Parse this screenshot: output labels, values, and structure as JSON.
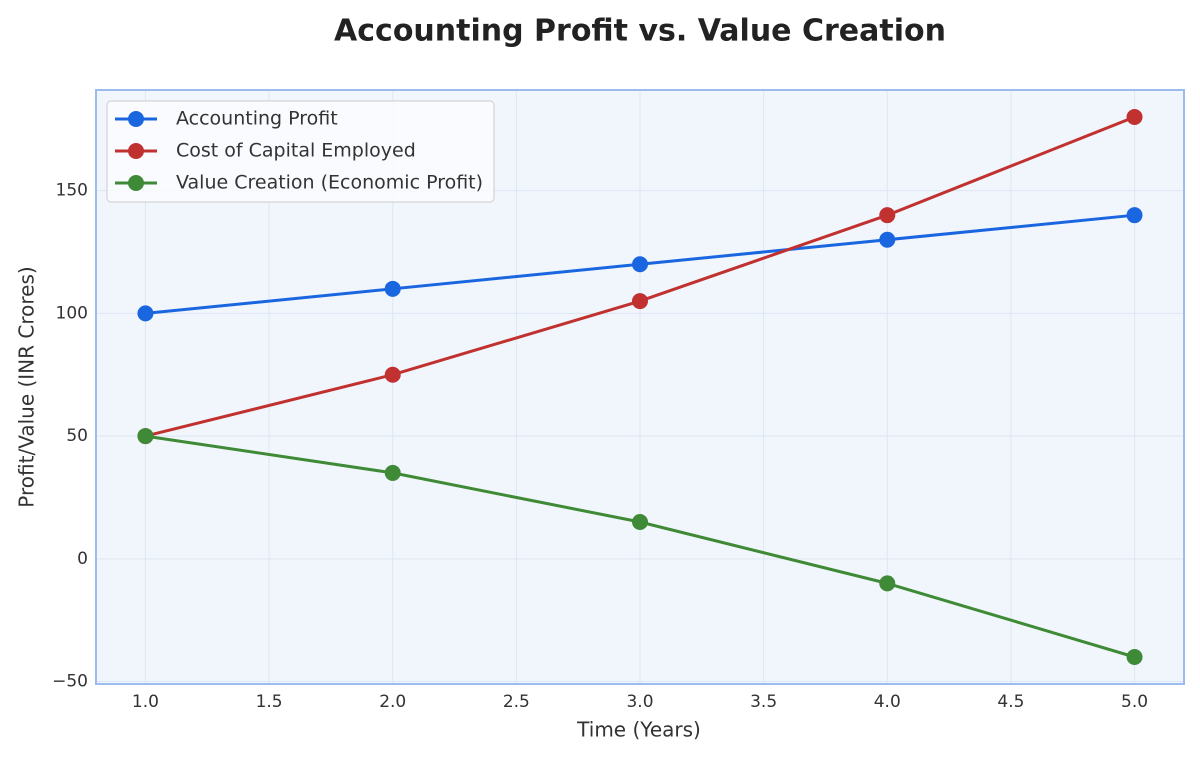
{
  "chart_data": {
    "type": "line",
    "title": "Accounting Profit vs. Value Creation",
    "x_label": "Time (Years)",
    "y_label": "Profit/Value (INR Crores)",
    "x": [
      1,
      2,
      3,
      4,
      5
    ],
    "series": [
      {
        "name": "Accounting Profit",
        "color": "#1a66e0",
        "values": [
          100,
          110,
          120,
          130,
          140
        ]
      },
      {
        "name": "Cost of Capital Employed",
        "color": "#c0312f",
        "values": [
          50,
          75,
          105,
          140,
          180
        ]
      },
      {
        "name": "Value Creation (Economic Profit)",
        "color": "#3f8a36",
        "values": [
          50,
          35,
          15,
          -10,
          -40
        ]
      }
    ],
    "xlim": [
      0.8,
      5.2
    ],
    "xticks": [
      {
        "value": 1,
        "label": "1.0"
      },
      1.5,
      {
        "value": 2,
        "label": "2.0"
      },
      2.5,
      {
        "value": 3,
        "label": "3.0"
      },
      3.5,
      {
        "value": 4,
        "label": "4.0"
      },
      4.5,
      {
        "value": 5,
        "label": "5.0"
      }
    ],
    "ylim": [
      -51,
      191
    ],
    "yticks": [
      {
        "value": -50,
        "label": "−50"
      },
      0,
      50,
      100,
      150
    ],
    "grid": true,
    "legend": "upper left"
  }
}
